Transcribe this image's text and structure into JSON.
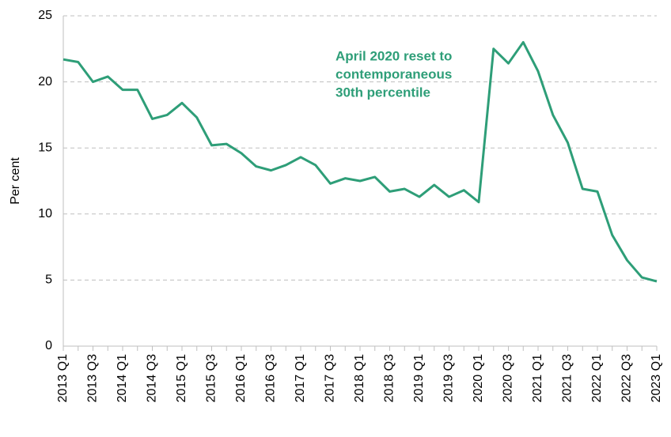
{
  "chart_data": {
    "type": "line",
    "y_label": "Per cent",
    "annotation": [
      "April 2020 reset to",
      "contemporaneous",
      "30th percentile"
    ],
    "categories": [
      "2013 Q1",
      null,
      "2013 Q3",
      null,
      "2014 Q1",
      null,
      "2014 Q3",
      null,
      "2015 Q1",
      null,
      "2015 Q3",
      null,
      "2016 Q1",
      null,
      "2016 Q3",
      null,
      "2017 Q1",
      null,
      "2017 Q3",
      null,
      "2018 Q1",
      null,
      "2018 Q3",
      null,
      "2019 Q1",
      null,
      "2019 Q3",
      null,
      "2020 Q1",
      null,
      "2020 Q3",
      null,
      "2021 Q1",
      null,
      "2021 Q3",
      null,
      "2022 Q1",
      null,
      "2022 Q3",
      null,
      "2023 Q1"
    ],
    "values": [
      21.7,
      21.5,
      20.0,
      20.4,
      19.4,
      19.4,
      17.2,
      17.5,
      18.4,
      17.3,
      15.2,
      15.3,
      14.6,
      13.6,
      13.3,
      13.7,
      14.3,
      13.7,
      12.3,
      12.7,
      12.5,
      12.8,
      11.7,
      11.9,
      11.3,
      12.2,
      11.3,
      11.8,
      10.9,
      22.5,
      21.4,
      23.0,
      20.8,
      17.5,
      15.4,
      11.9,
      11.7,
      8.4,
      6.5,
      5.2,
      4.9
    ],
    "color": "#2e9e78",
    "ylim": [
      0,
      25
    ],
    "yticks": [
      0,
      5,
      10,
      15,
      20,
      25
    ],
    "grid": true
  }
}
